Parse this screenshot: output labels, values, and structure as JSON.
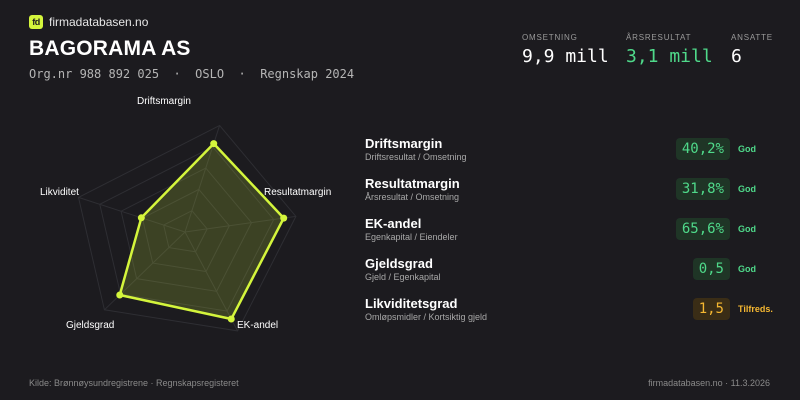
{
  "brand": {
    "logo_text": "fd",
    "name": "firmadatabasen.no",
    "accent": "#d4f53c"
  },
  "company": {
    "name": "BAGORAMA AS",
    "meta": "Org.nr 988 892 025  ·  OSLO  ·  Regnskap 2024"
  },
  "kpis": [
    {
      "label": "OMSETNING",
      "value": "9,9 mill",
      "color": "#ffffff"
    },
    {
      "label": "ÅRSRESULTAT",
      "value": "3,1 mill",
      "color": "#4fd98a"
    },
    {
      "label": "ANSATTE",
      "value": "6",
      "color": "#ffffff"
    }
  ],
  "radar": {
    "axes": [
      "Driftsmargin",
      "Resultatmargin",
      "EK-andel",
      "Gjeldsgrad",
      "Likviditet"
    ],
    "scores": [
      0.83,
      0.89,
      0.88,
      0.81,
      0.41
    ],
    "rings": 5,
    "line_color": "#d4f53c"
  },
  "metrics": [
    {
      "name": "Driftsmargin",
      "desc": "Driftsresultat / Omsetning",
      "value": "40,2%",
      "status": "God",
      "level": "good"
    },
    {
      "name": "Resultatmargin",
      "desc": "Årsresultat / Omsetning",
      "value": "31,8%",
      "status": "God",
      "level": "good"
    },
    {
      "name": "EK-andel",
      "desc": "Egenkapital / Eiendeler",
      "value": "65,6%",
      "status": "God",
      "level": "good"
    },
    {
      "name": "Gjeldsgrad",
      "desc": "Gjeld / Egenkapital",
      "value": "0,5",
      "status": "God",
      "level": "good"
    },
    {
      "name": "Likviditetsgrad",
      "desc": "Omløpsmidler / Kortsiktig gjeld",
      "value": "1,5",
      "status": "Tilfreds.",
      "level": "ok"
    }
  ],
  "footer": {
    "source": "Kilde: Brønnøysundregistrene · Regnskapsregisteret",
    "site_date": "firmadatabasen.no · 11.3.2026"
  }
}
